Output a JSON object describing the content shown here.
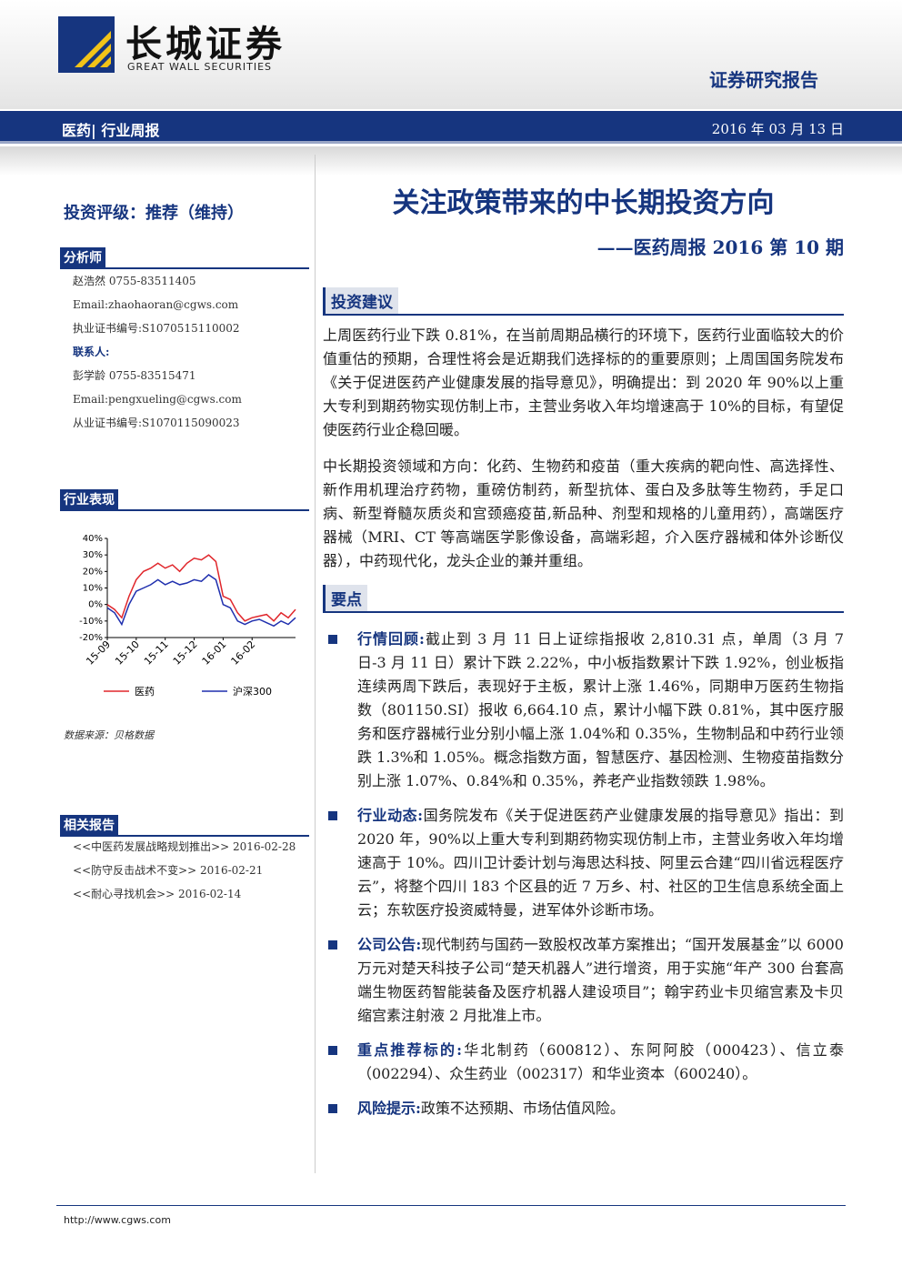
{
  "header": {
    "logo_cn": "长城证券",
    "logo_en": "GREAT WALL SECURITIES",
    "report_type": "证券研究报告",
    "sector": "医药|",
    "subsector": "行业周报",
    "date": "2016 年 03 月 13 日"
  },
  "sidebar": {
    "rating": "投资评级：推荐（维持）",
    "analyst_heading": "分析师",
    "analyst_lines": [
      "赵浩然 0755-83511405",
      "Email:zhaohaoran@cgws.com",
      "执业证书编号:S1070515110002"
    ],
    "contact_heading": "联系人:",
    "contact_lines": [
      "彭学龄 0755-83515471",
      "Email:pengxueling@cgws.com",
      "从业证书编号:S1070115090023"
    ],
    "performance_heading": "行业表现",
    "chart_data": {
      "type": "line",
      "categories": [
        "15-09",
        null,
        null,
        null,
        "15-10",
        null,
        null,
        null,
        "15-11",
        null,
        null,
        null,
        "15-12",
        null,
        null,
        null,
        "16-01",
        null,
        null,
        null,
        "16-02",
        null,
        null,
        null,
        null,
        null,
        null
      ],
      "series": [
        {
          "name": "医药",
          "color": "#e0262b",
          "values": [
            0,
            -3,
            -8,
            5,
            15,
            20,
            22,
            25,
            22,
            24,
            20,
            25,
            28,
            27,
            30,
            26,
            5,
            3,
            -5,
            -10,
            -8,
            -7,
            -6,
            -10,
            -5,
            -8,
            -3
          ]
        },
        {
          "name": "沪深300",
          "color": "#1f2fae",
          "values": [
            -2,
            -5,
            -12,
            0,
            8,
            10,
            12,
            15,
            12,
            14,
            12,
            13,
            15,
            14,
            18,
            15,
            0,
            -2,
            -10,
            -12,
            -10,
            -9,
            -11,
            -13,
            -10,
            -12,
            -8
          ]
        }
      ],
      "ylim": [
        -20,
        40
      ],
      "yticks": [
        {
          "value": -20,
          "label": "-20%"
        },
        {
          "value": -10,
          "label": "-10%"
        },
        {
          "value": 0,
          "label": "0%"
        },
        {
          "value": 10,
          "label": "10%"
        },
        {
          "value": 20,
          "label": "20%"
        },
        {
          "value": 30,
          "label": "30%"
        },
        {
          "value": 40,
          "label": "40%"
        }
      ]
    },
    "source": "数据来源：贝格数据",
    "related_heading": "相关报告",
    "related": [
      "<<中医药发展战略规划推出>> 2016-02-28",
      "<<防守反击战术不变>> 2016-02-21",
      "<<耐心寻找机会>> 2016-02-14"
    ]
  },
  "main": {
    "title": "关注政策带来的中长期投资方向",
    "subtitle": "——医药周报 2016 第 10 期",
    "section1": "投资建议",
    "paragraphs": [
      "上周医药行业下跌 0.81%，在当前周期品横行的环境下，医药行业面临较大的价值重估的预期，合理性将会是近期我们选择标的的重要原则；上周国国务院发布《关于促进医药产业健康发展的指导意见》，明确提出：到 2020 年 90%以上重大专利到期药物实现仿制上市，主营业务收入年均增速高于 10%的目标，有望促使医药行业企稳回暖。",
      "中长期投资领域和方向：化药、生物药和疫苗（重大疾病的靶向性、高选择性、新作用机理治疗药物，重磅仿制药，新型抗体、蛋白及多肽等生物药，手足口病、新型脊髓灰质炎和宫颈癌疫苗,新品种、剂型和规格的儿童用药），高端医疗器械（MRI、CT 等高端医学影像设备，高端彩超，介入医疗器械和体外诊断仪器），中药现代化，龙头企业的兼并重组。"
    ],
    "section2": "要点",
    "bullets": [
      {
        "label": "行情回顾:",
        "text": "截止到 3 月 11 日上证综指报收 2,810.31 点，单周（3 月 7 日-3 月 11 日）累计下跌 2.22%，中小板指数累计下跌 1.92%，创业板指连续两周下跌后，表现好于主板，累计上涨 1.46%，同期申万医药生物指数（801150.SI）报收 6,664.10 点，累计小幅下跌 0.81%，其中医疗服务和医疗器械行业分别小幅上涨 1.04%和 0.35%，生物制品和中药行业领跌 1.3%和 1.05%。概念指数方面，智慧医疗、基因检测、生物疫苗指数分别上涨 1.07%、0.84%和 0.35%，养老产业指数领跌 1.98%。"
      },
      {
        "label": "行业动态:",
        "text": "国务院发布《关于促进医药产业健康发展的指导意见》指出：到 2020 年，90%以上重大专利到期药物实现仿制上市，主营业务收入年均增速高于 10%。四川卫计委计划与海思达科技、阿里云合建“四川省远程医疗云”，将整个四川 183 个区县的近 7 万乡、村、社区的卫生信息系统全面上云；东软医疗投资威特曼，进军体外诊断市场。"
      },
      {
        "label": "公司公告:",
        "text": "现代制药与国药一致股权改革方案推出；“国开发展基金”以 6000 万元对楚天科技子公司“楚天机器人”进行增资，用于实施“年产 300 台套高端生物医药智能装备及医疗机器人建设项目”；翰宇药业卡贝缩宫素及卡贝缩宫素注射液 2 月批准上市。"
      },
      {
        "label": "重点推荐标的:",
        "text": "华北制药（600812）、东阿阿胶（000423）、信立泰（002294）、众生药业（002317）和华业资本（600240）。"
      },
      {
        "label": "风险提示:",
        "text": "政策不达预期、市场估值风险。"
      }
    ]
  },
  "footer": {
    "url": "http://www.cgws.com"
  }
}
